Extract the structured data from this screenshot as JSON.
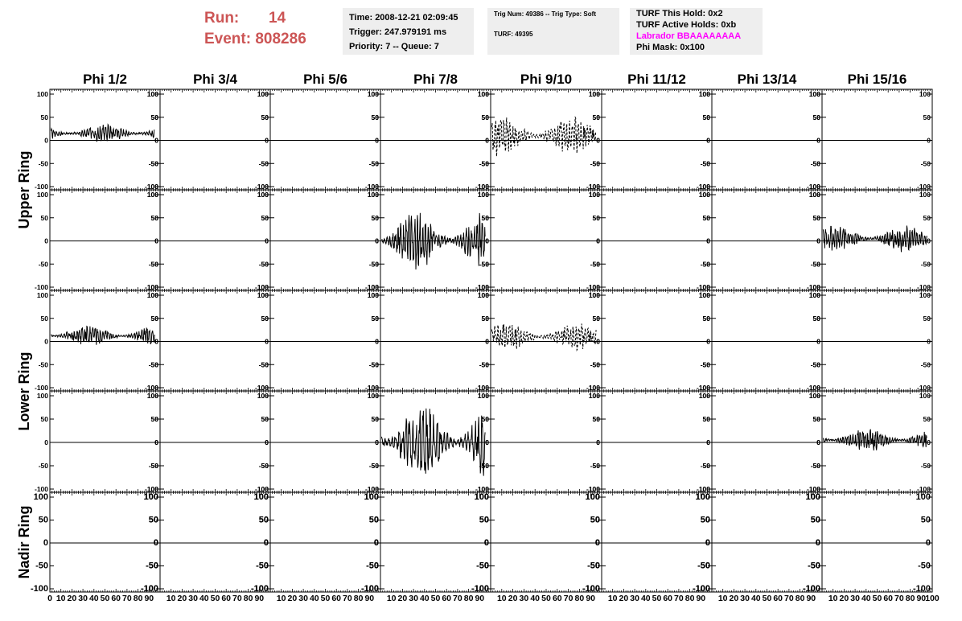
{
  "header": {
    "run_label": "Run:",
    "run_value": "14",
    "event_label": "Event:",
    "event_value": "808286",
    "time": "Time: 2008-12-21 02:09:45",
    "trigger": "Trigger: 247.979191 ms",
    "priority": "Priority: 7 -- Queue: 7",
    "trig_num": "Trig Num: 49386 -- Trig Type: Soft",
    "turf": "TURF: 49395",
    "turf_this_hold": "TURF This Hold: 0x2",
    "turf_active_holds": "TURF Active Holds: 0xb",
    "labrador": "Labrador BBAAAAAAAA",
    "phi_mask": "Phi Mask: 0x100"
  },
  "colors": {
    "run_text": "#cc5555",
    "labrador_text": "#ff00ff",
    "info_bg": "#eeeeee",
    "trace": "#000000"
  },
  "chart_data": {
    "type": "line",
    "columns": [
      "Phi 1/2",
      "Phi 3/4",
      "Phi 5/6",
      "Phi 7/8",
      "Phi 9/10",
      "Phi 11/12",
      "Phi 13/14",
      "Phi 15/16"
    ],
    "ring_labels": [
      "Upper Ring",
      "Lower Ring",
      "Nadir Ring"
    ],
    "xlim": [
      0,
      100
    ],
    "ylim": [
      -100,
      100
    ],
    "x_ticks": [
      "0",
      "10",
      "20",
      "30",
      "40",
      "50",
      "60",
      "70",
      "80",
      "90",
      "100"
    ],
    "y_ticks": [
      "100",
      "50",
      "0",
      "-50",
      "-100"
    ],
    "traces": [
      {
        "row": 0,
        "col": 0,
        "style": "solid",
        "offset": 15,
        "amplitude": 18,
        "cycles": 40,
        "seed": 3
      },
      {
        "row": 0,
        "col": 4,
        "style": "dashed",
        "offset": 10,
        "amplitude": 40,
        "cycles": 35,
        "seed": 7
      },
      {
        "row": 1,
        "col": 3,
        "style": "solid",
        "offset": 0,
        "amplitude": 55,
        "cycles": 38,
        "seed": 11
      },
      {
        "row": 1,
        "col": 7,
        "style": "solid",
        "offset": 5,
        "amplitude": 25,
        "cycles": 42,
        "seed": 13
      },
      {
        "row": 2,
        "col": 0,
        "style": "solid",
        "offset": 12,
        "amplitude": 20,
        "cycles": 40,
        "seed": 17
      },
      {
        "row": 2,
        "col": 4,
        "style": "dashed",
        "offset": 10,
        "amplitude": 28,
        "cycles": 36,
        "seed": 19
      },
      {
        "row": 3,
        "col": 3,
        "style": "solid",
        "offset": 0,
        "amplitude": 75,
        "cycles": 30,
        "seed": 23
      },
      {
        "row": 3,
        "col": 7,
        "style": "solid",
        "offset": 5,
        "amplitude": 22,
        "cycles": 42,
        "seed": 29
      }
    ]
  }
}
